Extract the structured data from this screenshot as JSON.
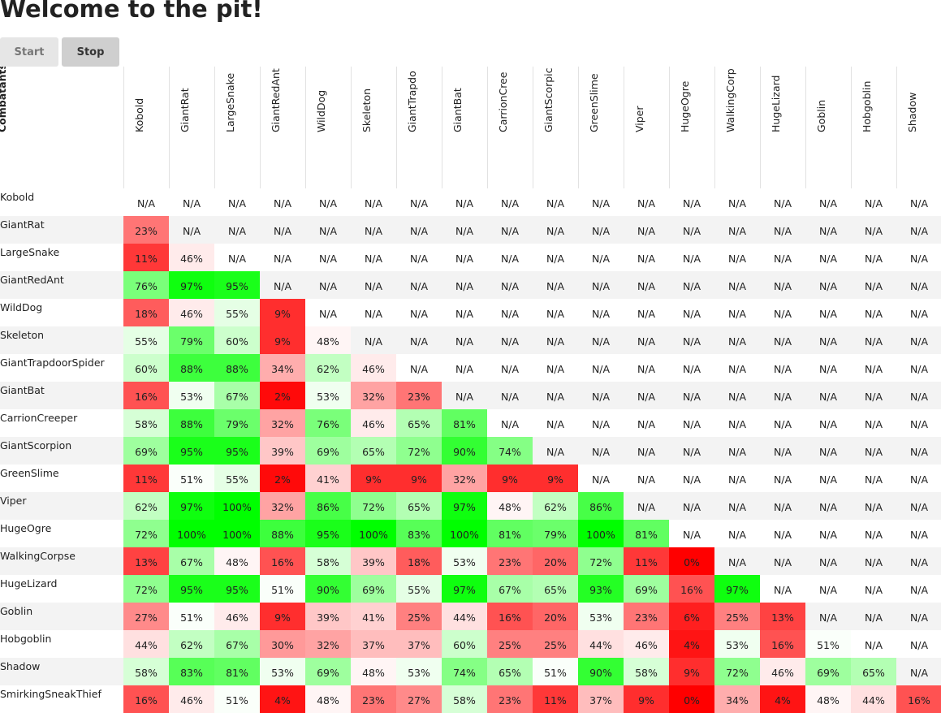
{
  "page": {
    "title": "Welcome to the pit!"
  },
  "controls": {
    "start_label": "Start",
    "stop_label": "Stop"
  },
  "table": {
    "corner_label": "Combatants",
    "columns": [
      "Kobold",
      "GiantRat",
      "LargeSnake",
      "GiantRedAnt",
      "WildDog",
      "Skeleton",
      "GiantTrapdo",
      "GiantBat",
      "CarrionCree",
      "GiantScorpic",
      "GreenSlime",
      "Viper",
      "HugeOgre",
      "WalkingCorp",
      "HugeLizard",
      "Goblin",
      "Hobgoblin",
      "Shadow"
    ],
    "rows": [
      {
        "name": "Kobold",
        "cells": [
          "N/A",
          "N/A",
          "N/A",
          "N/A",
          "N/A",
          "N/A",
          "N/A",
          "N/A",
          "N/A",
          "N/A",
          "N/A",
          "N/A",
          "N/A",
          "N/A",
          "N/A",
          "N/A",
          "N/A",
          "N/A"
        ]
      },
      {
        "name": "GiantRat",
        "cells": [
          "23%",
          "N/A",
          "N/A",
          "N/A",
          "N/A",
          "N/A",
          "N/A",
          "N/A",
          "N/A",
          "N/A",
          "N/A",
          "N/A",
          "N/A",
          "N/A",
          "N/A",
          "N/A",
          "N/A",
          "N/A"
        ]
      },
      {
        "name": "LargeSnake",
        "cells": [
          "11%",
          "46%",
          "N/A",
          "N/A",
          "N/A",
          "N/A",
          "N/A",
          "N/A",
          "N/A",
          "N/A",
          "N/A",
          "N/A",
          "N/A",
          "N/A",
          "N/A",
          "N/A",
          "N/A",
          "N/A"
        ]
      },
      {
        "name": "GiantRedAnt",
        "cells": [
          "76%",
          "97%",
          "95%",
          "N/A",
          "N/A",
          "N/A",
          "N/A",
          "N/A",
          "N/A",
          "N/A",
          "N/A",
          "N/A",
          "N/A",
          "N/A",
          "N/A",
          "N/A",
          "N/A",
          "N/A"
        ]
      },
      {
        "name": "WildDog",
        "cells": [
          "18%",
          "46%",
          "55%",
          "9%",
          "N/A",
          "N/A",
          "N/A",
          "N/A",
          "N/A",
          "N/A",
          "N/A",
          "N/A",
          "N/A",
          "N/A",
          "N/A",
          "N/A",
          "N/A",
          "N/A"
        ]
      },
      {
        "name": "Skeleton",
        "cells": [
          "55%",
          "79%",
          "60%",
          "9%",
          "48%",
          "N/A",
          "N/A",
          "N/A",
          "N/A",
          "N/A",
          "N/A",
          "N/A",
          "N/A",
          "N/A",
          "N/A",
          "N/A",
          "N/A",
          "N/A"
        ]
      },
      {
        "name": "GiantTrapdoorSpider",
        "cells": [
          "60%",
          "88%",
          "88%",
          "34%",
          "62%",
          "46%",
          "N/A",
          "N/A",
          "N/A",
          "N/A",
          "N/A",
          "N/A",
          "N/A",
          "N/A",
          "N/A",
          "N/A",
          "N/A",
          "N/A"
        ]
      },
      {
        "name": "GiantBat",
        "cells": [
          "16%",
          "53%",
          "67%",
          "2%",
          "53%",
          "32%",
          "23%",
          "N/A",
          "N/A",
          "N/A",
          "N/A",
          "N/A",
          "N/A",
          "N/A",
          "N/A",
          "N/A",
          "N/A",
          "N/A"
        ]
      },
      {
        "name": "CarrionCreeper",
        "cells": [
          "58%",
          "88%",
          "79%",
          "32%",
          "76%",
          "46%",
          "65%",
          "81%",
          "N/A",
          "N/A",
          "N/A",
          "N/A",
          "N/A",
          "N/A",
          "N/A",
          "N/A",
          "N/A",
          "N/A"
        ]
      },
      {
        "name": "GiantScorpion",
        "cells": [
          "69%",
          "95%",
          "95%",
          "39%",
          "69%",
          "65%",
          "72%",
          "90%",
          "74%",
          "N/A",
          "N/A",
          "N/A",
          "N/A",
          "N/A",
          "N/A",
          "N/A",
          "N/A",
          "N/A"
        ]
      },
      {
        "name": "GreenSlime",
        "cells": [
          "11%",
          "51%",
          "55%",
          "2%",
          "41%",
          "9%",
          "9%",
          "32%",
          "9%",
          "9%",
          "N/A",
          "N/A",
          "N/A",
          "N/A",
          "N/A",
          "N/A",
          "N/A",
          "N/A"
        ]
      },
      {
        "name": "Viper",
        "cells": [
          "62%",
          "97%",
          "100%",
          "32%",
          "86%",
          "72%",
          "65%",
          "97%",
          "48%",
          "62%",
          "86%",
          "N/A",
          "N/A",
          "N/A",
          "N/A",
          "N/A",
          "N/A",
          "N/A"
        ]
      },
      {
        "name": "HugeOgre",
        "cells": [
          "72%",
          "100%",
          "100%",
          "88%",
          "95%",
          "100%",
          "83%",
          "100%",
          "81%",
          "79%",
          "100%",
          "81%",
          "N/A",
          "N/A",
          "N/A",
          "N/A",
          "N/A",
          "N/A"
        ]
      },
      {
        "name": "WalkingCorpse",
        "cells": [
          "13%",
          "67%",
          "48%",
          "16%",
          "58%",
          "39%",
          "18%",
          "53%",
          "23%",
          "20%",
          "72%",
          "11%",
          "0%",
          "N/A",
          "N/A",
          "N/A",
          "N/A",
          "N/A"
        ]
      },
      {
        "name": "HugeLizard",
        "cells": [
          "72%",
          "95%",
          "95%",
          "51%",
          "90%",
          "69%",
          "55%",
          "97%",
          "67%",
          "65%",
          "93%",
          "69%",
          "16%",
          "97%",
          "N/A",
          "N/A",
          "N/A",
          "N/A"
        ]
      },
      {
        "name": "Goblin",
        "cells": [
          "27%",
          "51%",
          "46%",
          "9%",
          "39%",
          "41%",
          "25%",
          "44%",
          "16%",
          "20%",
          "53%",
          "23%",
          "6%",
          "25%",
          "13%",
          "N/A",
          "N/A",
          "N/A"
        ]
      },
      {
        "name": "Hobgoblin",
        "cells": [
          "44%",
          "62%",
          "67%",
          "30%",
          "32%",
          "37%",
          "37%",
          "60%",
          "25%",
          "25%",
          "44%",
          "46%",
          "4%",
          "53%",
          "16%",
          "51%",
          "N/A",
          "N/A"
        ]
      },
      {
        "name": "Shadow",
        "cells": [
          "58%",
          "83%",
          "81%",
          "53%",
          "69%",
          "48%",
          "53%",
          "74%",
          "65%",
          "51%",
          "90%",
          "58%",
          "9%",
          "72%",
          "46%",
          "69%",
          "65%",
          "N/A"
        ]
      },
      {
        "name": "SmirkingSneakThief",
        "cells": [
          "16%",
          "46%",
          "51%",
          "4%",
          "48%",
          "23%",
          "27%",
          "58%",
          "23%",
          "11%",
          "37%",
          "9%",
          "0%",
          "34%",
          "4%",
          "48%",
          "44%",
          "16%"
        ]
      }
    ]
  },
  "colors": {
    "win": "#00ff00",
    "loss": "#ff0000",
    "neutral": "#ffffff",
    "stripe": "#f3f3f3"
  }
}
